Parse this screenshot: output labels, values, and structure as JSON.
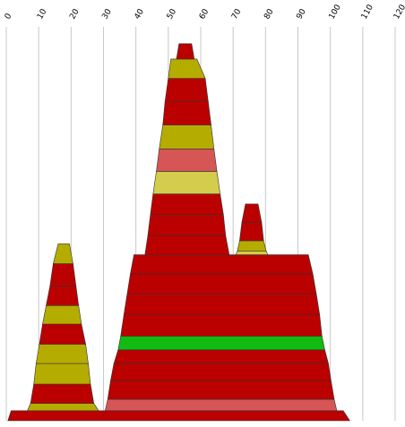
{
  "chart_data": {
    "type": "area",
    "title": "",
    "xlabel": "",
    "ylabel": "",
    "grid": true,
    "tick_label_rotation": "-60deg",
    "x_axis": {
      "min": 0,
      "max": 120,
      "ticks": [
        "0",
        "10",
        "20",
        "30",
        "40",
        "50",
        "60",
        "70",
        "80",
        "90",
        "100",
        "110",
        "120"
      ]
    },
    "y_axis": {
      "min": 0,
      "max": 100
    },
    "colors": {
      "red": "#bb0000",
      "olive": "#b5ac00",
      "light_red": "#d65555",
      "khaki": "#d4cc4c",
      "green": "#11bb11"
    },
    "stacks": [
      {
        "bands": [
          {
            "x_left_bottom": 0.5,
            "x_right_bottom": 106,
            "x_left_top": 1.5,
            "x_right_top": 104,
            "y_bottom": 0,
            "y_top": 2.5,
            "color": "red"
          }
        ]
      },
      {
        "bands": [
          {
            "x_left_bottom": 6.5,
            "x_right_bottom": 28.5,
            "x_left_top": 7.5,
            "x_right_top": 27,
            "y_bottom": 2.5,
            "y_top": 4.3,
            "color": "olive"
          },
          {
            "x_left_bottom": 7.5,
            "x_right_bottom": 27,
            "x_left_top": 8.5,
            "x_right_top": 26,
            "y_bottom": 4.3,
            "y_top": 9.1,
            "color": "red"
          },
          {
            "x_left_bottom": 8.5,
            "x_right_bottom": 26,
            "x_left_top": 9.2,
            "x_right_top": 25.3,
            "y_bottom": 9.1,
            "y_top": 14.2,
            "color": "olive"
          },
          {
            "x_left_bottom": 9.2,
            "x_right_bottom": 25.3,
            "x_left_top": 10.2,
            "x_right_top": 24.5,
            "y_bottom": 14.2,
            "y_top": 19.0,
            "color": "olive"
          },
          {
            "x_left_bottom": 10.2,
            "x_right_bottom": 24.5,
            "x_left_top": 11.2,
            "x_right_top": 23.2,
            "y_bottom": 19.0,
            "y_top": 24.0,
            "color": "red"
          },
          {
            "x_left_bottom": 11.2,
            "x_right_bottom": 23.2,
            "x_left_top": 12.3,
            "x_right_top": 22.3,
            "y_bottom": 24.0,
            "y_top": 28.6,
            "color": "olive"
          },
          {
            "x_left_bottom": 12.3,
            "x_right_bottom": 22.3,
            "x_left_top": 13.5,
            "x_right_top": 21.5,
            "y_bottom": 28.6,
            "y_top": 33.5,
            "color": "red"
          },
          {
            "x_left_bottom": 13.5,
            "x_right_bottom": 21.5,
            "x_left_top": 14.5,
            "x_right_top": 20.6,
            "y_bottom": 33.5,
            "y_top": 39.0,
            "color": "red"
          },
          {
            "x_left_bottom": 14.5,
            "x_right_bottom": 20.6,
            "x_left_top": 16.0,
            "x_right_top": 19.5,
            "y_bottom": 39.0,
            "y_top": 43.9,
            "color": "olive"
          }
        ]
      },
      {
        "bands": [
          {
            "x_left_bottom": 30.5,
            "x_right_bottom": 102,
            "x_left_top": 31.3,
            "x_right_top": 101.2,
            "y_bottom": 2.5,
            "y_top": 5.3,
            "color": "light_red"
          },
          {
            "x_left_bottom": 31.3,
            "x_right_bottom": 101.2,
            "x_left_top": 32.2,
            "x_right_top": 100.2,
            "y_bottom": 5.3,
            "y_top": 10.0,
            "color": "red"
          },
          {
            "x_left_bottom": 32.2,
            "x_right_bottom": 100.2,
            "x_left_top": 33.2,
            "x_right_top": 99.4,
            "y_bottom": 10.0,
            "y_top": 14.2,
            "color": "red"
          },
          {
            "x_left_bottom": 33.2,
            "x_right_bottom": 99.4,
            "x_left_top": 34.5,
            "x_right_top": 98.3,
            "y_bottom": 14.2,
            "y_top": 17.6,
            "color": "red"
          },
          {
            "x_left_bottom": 34.5,
            "x_right_bottom": 98.3,
            "x_left_top": 35.3,
            "x_right_top": 97.4,
            "y_bottom": 17.6,
            "y_top": 21.0,
            "color": "green"
          },
          {
            "x_left_bottom": 35.3,
            "x_right_bottom": 97.4,
            "x_left_top": 36.3,
            "x_right_top": 96.7,
            "y_bottom": 21.0,
            "y_top": 26.4,
            "color": "red"
          },
          {
            "x_left_bottom": 36.3,
            "x_right_bottom": 96.7,
            "x_left_top": 37.3,
            "x_right_top": 95.7,
            "y_bottom": 26.4,
            "y_top": 31.4,
            "color": "red"
          },
          {
            "x_left_bottom": 37.3,
            "x_right_bottom": 95.7,
            "x_left_top": 38.3,
            "x_right_top": 94.6,
            "y_bottom": 31.4,
            "y_top": 36.5,
            "color": "red"
          },
          {
            "x_left_bottom": 38.3,
            "x_right_bottom": 94.6,
            "x_left_top": 39.4,
            "x_right_top": 93.2,
            "y_bottom": 36.5,
            "y_top": 41.2,
            "color": "red"
          }
        ]
      },
      {
        "bands": [
          {
            "x_left_bottom": 70.8,
            "x_right_bottom": 80.7,
            "x_left_top": 71.3,
            "x_right_top": 80.2,
            "y_bottom": 41.2,
            "y_top": 42.1,
            "color": "khaki"
          },
          {
            "x_left_bottom": 71.3,
            "x_right_bottom": 80.2,
            "x_left_top": 72.0,
            "x_right_top": 79.4,
            "y_bottom": 42.1,
            "y_top": 44.7,
            "color": "olive"
          },
          {
            "x_left_bottom": 72.0,
            "x_right_bottom": 79.4,
            "x_left_top": 72.7,
            "x_right_top": 78.8,
            "y_bottom": 44.7,
            "y_top": 49.2,
            "color": "red"
          },
          {
            "x_left_bottom": 72.7,
            "x_right_bottom": 78.8,
            "x_left_top": 73.8,
            "x_right_top": 77.7,
            "y_bottom": 49.2,
            "y_top": 53.8,
            "color": "red"
          }
        ]
      },
      {
        "bands": [
          {
            "x_left_bottom": 42.8,
            "x_right_bottom": 68.8,
            "x_left_top": 43.7,
            "x_right_top": 67.7,
            "y_bottom": 41.2,
            "y_top": 46.0,
            "color": "red"
          },
          {
            "x_left_bottom": 43.7,
            "x_right_bottom": 67.7,
            "x_left_top": 44.5,
            "x_right_top": 67.0,
            "y_bottom": 46.0,
            "y_top": 51.2,
            "color": "red"
          },
          {
            "x_left_bottom": 44.5,
            "x_right_bottom": 67.0,
            "x_left_top": 45.3,
            "x_right_top": 66.0,
            "y_bottom": 51.2,
            "y_top": 56.3,
            "color": "red"
          },
          {
            "x_left_bottom": 45.3,
            "x_right_bottom": 66.0,
            "x_left_top": 46.3,
            "x_right_top": 65.0,
            "y_bottom": 56.3,
            "y_top": 61.9,
            "color": "khaki"
          },
          {
            "x_left_bottom": 46.3,
            "x_right_bottom": 65.0,
            "x_left_top": 47.2,
            "x_right_top": 64.1,
            "y_bottom": 61.9,
            "y_top": 67.5,
            "color": "light_red"
          },
          {
            "x_left_bottom": 47.2,
            "x_right_bottom": 64.1,
            "x_left_top": 48.3,
            "x_right_top": 63.2,
            "y_bottom": 67.5,
            "y_top": 73.4,
            "color": "olive"
          },
          {
            "x_left_bottom": 48.3,
            "x_right_bottom": 63.2,
            "x_left_top": 49.0,
            "x_right_top": 62.3,
            "y_bottom": 73.4,
            "y_top": 79.3,
            "color": "red"
          },
          {
            "x_left_bottom": 49.0,
            "x_right_bottom": 62.3,
            "x_left_top": 50.0,
            "x_right_top": 61.4,
            "y_bottom": 79.3,
            "y_top": 85.0,
            "color": "red"
          },
          {
            "x_left_bottom": 50.0,
            "x_right_bottom": 61.4,
            "x_left_top": 50.8,
            "x_right_top": 58.8,
            "y_bottom": 85.0,
            "y_top": 89.8,
            "color": "olive"
          },
          {
            "x_left_bottom": 52.5,
            "x_right_bottom": 58.0,
            "x_left_top": 53.3,
            "x_right_top": 57.2,
            "y_bottom": 89.8,
            "y_top": 93.6,
            "color": "red"
          }
        ]
      }
    ]
  }
}
